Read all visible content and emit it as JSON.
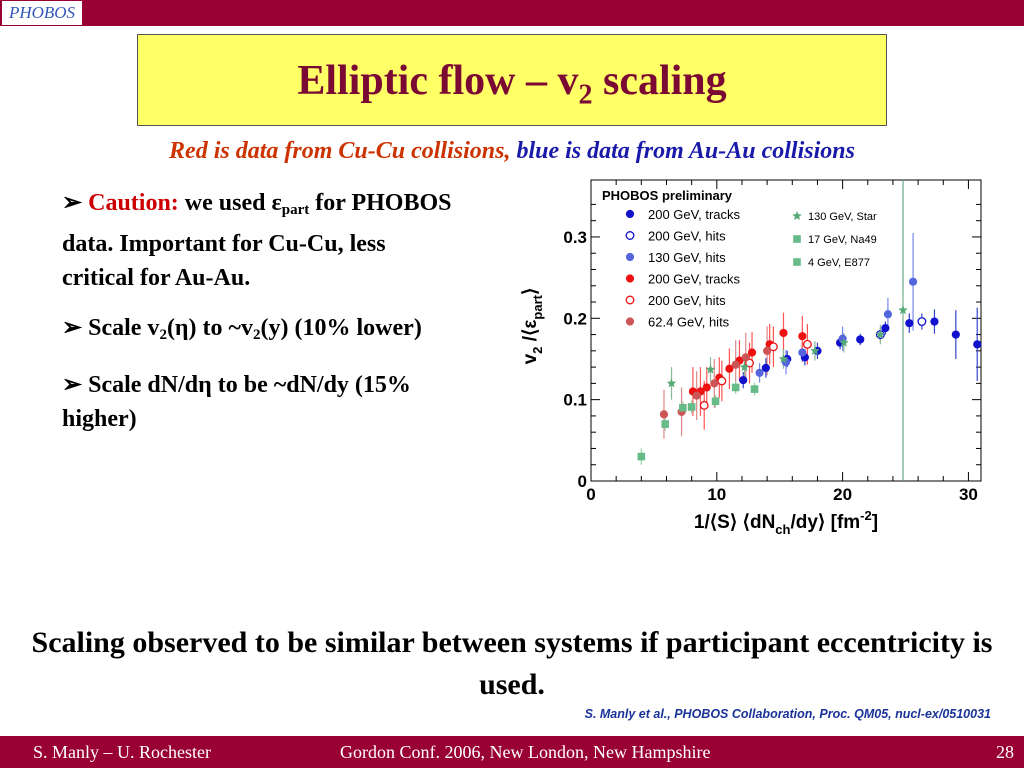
{
  "logo_text": "PHOBOS",
  "title": {
    "main": "Elliptic flow – v",
    "sub": "2",
    "tail": " scaling"
  },
  "subtitle": {
    "red": "Red is data from Cu-Cu collisions,",
    "blue": " blue is data from Au-Au collisions"
  },
  "bullets": {
    "b1": {
      "marker": "➢",
      "caution": "Caution:",
      "text1": "  we used ε",
      "sub": "part",
      "text2": " for PHOBOS data.  Important for Cu-Cu, less critical for Au-Au."
    },
    "b2": {
      "marker": "➢",
      "text1": " Scale v",
      "sub1": "2",
      "text2": "(η) to  ~v",
      "sub2": "2",
      "text3": "(y) (10% lower)"
    },
    "b3": {
      "marker": "➢",
      "text": " Scale dN/dη to be ~dN/dy (15% higher)"
    }
  },
  "conclusion": "Scaling observed to be similar between systems if participant eccentricity is used.",
  "reference": "S. Manly et al., PHOBOS Collaboration, Proc. QM05, nucl-ex/0510031",
  "footer": {
    "left": "S. Manly – U. Rochester",
    "center": "Gordon Conf. 2006, New London, New Hampshire",
    "right": "28"
  },
  "colors": {
    "bar": "#990033",
    "title_box": "#ffff66",
    "title_text": "#7a0a33",
    "au": "#1111cc",
    "au130": "#5566dd",
    "cu": "#ee1111",
    "cu62": "#cc5555",
    "star": "#55aa77",
    "sps": "#66bb88"
  },
  "chart_data": {
    "type": "scatter",
    "title": "PHOBOS preliminary",
    "xlabel": "1/⟨S⟩ ⟨dN_ch/dy⟩ [fm^-2]",
    "ylabel": "v_2 /⟨ε_part⟩",
    "xlim": [
      0,
      31
    ],
    "ylim": [
      0,
      0.37
    ],
    "xticks": [
      "0",
      "10",
      "20",
      "30"
    ],
    "yticks": [
      "0",
      "0.1",
      "0.2",
      "0.3"
    ],
    "vline_x": 24.8,
    "legend_left": [
      {
        "label": "200 GeV, tracks",
        "color": "#1111cc",
        "marker": "filled-circle"
      },
      {
        "label": "200 GeV, hits",
        "color": "#1111cc",
        "marker": "open-circle"
      },
      {
        "label": "130 GeV, hits",
        "color": "#5566dd",
        "marker": "filled-circle"
      },
      {
        "label": "200 GeV, tracks",
        "color": "#ee1111",
        "marker": "filled-circle"
      },
      {
        "label": "200 GeV, hits",
        "color": "#ee1111",
        "marker": "open-circle"
      },
      {
        "label": "62.4 GeV, hits",
        "color": "#cc5555",
        "marker": "filled-circle"
      }
    ],
    "legend_right": [
      {
        "label": "130 GeV, Star",
        "color": "#55aa77",
        "marker": "star"
      },
      {
        "label": "17 GeV, Na49",
        "color": "#66bb88",
        "marker": "square"
      },
      {
        "label": "4 GeV, E877",
        "color": "#66bb88",
        "marker": "square"
      }
    ],
    "series": [
      {
        "name": "Au-Au 200 GeV, tracks",
        "color": "#1111cc",
        "marker": "filled-circle",
        "err_color": "#3344cc",
        "points": [
          [
            12.1,
            0.124,
            0.01
          ],
          [
            13.9,
            0.139,
            0.012
          ],
          [
            15.6,
            0.15,
            0.01
          ],
          [
            17.0,
            0.152,
            0.01
          ],
          [
            18.0,
            0.16,
            0.01
          ],
          [
            19.8,
            0.17,
            0.008
          ],
          [
            21.4,
            0.174,
            0.007
          ],
          [
            23.4,
            0.188,
            0.008
          ],
          [
            25.3,
            0.194,
            0.012
          ],
          [
            27.3,
            0.196,
            0.015
          ],
          [
            29.0,
            0.18,
            0.03
          ],
          [
            30.7,
            0.168,
            0.045
          ]
        ]
      },
      {
        "name": "Au-Au 200 GeV, hits",
        "color": "#1111cc",
        "marker": "open-circle",
        "err_color": "#3344cc",
        "points": [
          [
            23.0,
            0.18,
            0.008
          ],
          [
            26.3,
            0.196,
            0.01
          ]
        ]
      },
      {
        "name": "Au-Au 130 GeV, hits",
        "color": "#5566dd",
        "marker": "filled-circle",
        "err_color": "#7788ee",
        "points": [
          [
            13.4,
            0.133,
            0.012
          ],
          [
            15.5,
            0.146,
            0.015
          ],
          [
            16.8,
            0.158,
            0.012
          ],
          [
            20.0,
            0.175,
            0.015
          ],
          [
            23.6,
            0.205,
            0.02
          ],
          [
            25.6,
            0.245,
            0.06
          ]
        ]
      },
      {
        "name": "Cu-Cu 200 GeV, tracks",
        "color": "#ee1111",
        "marker": "filled-circle",
        "err_color": "#ff5555",
        "points": [
          [
            8.1,
            0.11,
            0.03
          ],
          [
            8.7,
            0.11,
            0.03
          ],
          [
            9.2,
            0.115,
            0.025
          ],
          [
            10.2,
            0.127,
            0.025
          ],
          [
            11.0,
            0.138,
            0.025
          ],
          [
            11.8,
            0.148,
            0.025
          ],
          [
            12.8,
            0.158,
            0.025
          ],
          [
            14.2,
            0.168,
            0.025
          ],
          [
            15.3,
            0.182,
            0.025
          ],
          [
            16.8,
            0.178,
            0.025
          ]
        ]
      },
      {
        "name": "Cu-Cu 200 GeV, hits",
        "color": "#ee1111",
        "marker": "open-circle",
        "err_color": "#ff5555",
        "points": [
          [
            9.0,
            0.093,
            0.03
          ],
          [
            10.4,
            0.123,
            0.025
          ],
          [
            12.6,
            0.145,
            0.025
          ],
          [
            14.5,
            0.165,
            0.025
          ],
          [
            17.2,
            0.168,
            0.025
          ]
        ]
      },
      {
        "name": "Cu-Cu 62.4 GeV, hits",
        "color": "#cc5555",
        "marker": "filled-circle",
        "err_color": "#dd8888",
        "points": [
          [
            5.8,
            0.082,
            0.03
          ],
          [
            7.2,
            0.085,
            0.03
          ],
          [
            8.4,
            0.105,
            0.03
          ],
          [
            9.8,
            0.12,
            0.03
          ],
          [
            11.5,
            0.143,
            0.03
          ],
          [
            12.3,
            0.152,
            0.03
          ],
          [
            14.0,
            0.16,
            0.03
          ]
        ]
      },
      {
        "name": "130 GeV, Star",
        "color": "#55aa77",
        "marker": "star",
        "err_color": "#88bb99",
        "points": [
          [
            6.4,
            0.12,
            0.02
          ],
          [
            9.5,
            0.137,
            0.015
          ],
          [
            12.2,
            0.14,
            0.012
          ],
          [
            15.3,
            0.15,
            0.012
          ],
          [
            17.8,
            0.16,
            0.012
          ],
          [
            20.1,
            0.17,
            0.012
          ],
          [
            23.0,
            0.18,
            0.012
          ],
          [
            24.8,
            0.21,
            0.02
          ]
        ]
      },
      {
        "name": "17 GeV, Na49",
        "color": "#66bb88",
        "marker": "square",
        "err_color": "#99ccaa",
        "points": [
          [
            5.9,
            0.07,
            0.008
          ],
          [
            7.3,
            0.09,
            0.008
          ],
          [
            8.0,
            0.091,
            0.008
          ],
          [
            9.9,
            0.098,
            0.008
          ],
          [
            11.5,
            0.115,
            0.008
          ],
          [
            13.0,
            0.113,
            0.008
          ]
        ]
      },
      {
        "name": "4 GeV, E877",
        "color": "#66bb88",
        "marker": "square",
        "err_color": "#99ccaa",
        "points": [
          [
            4.0,
            0.03,
            0.01
          ]
        ]
      }
    ]
  }
}
